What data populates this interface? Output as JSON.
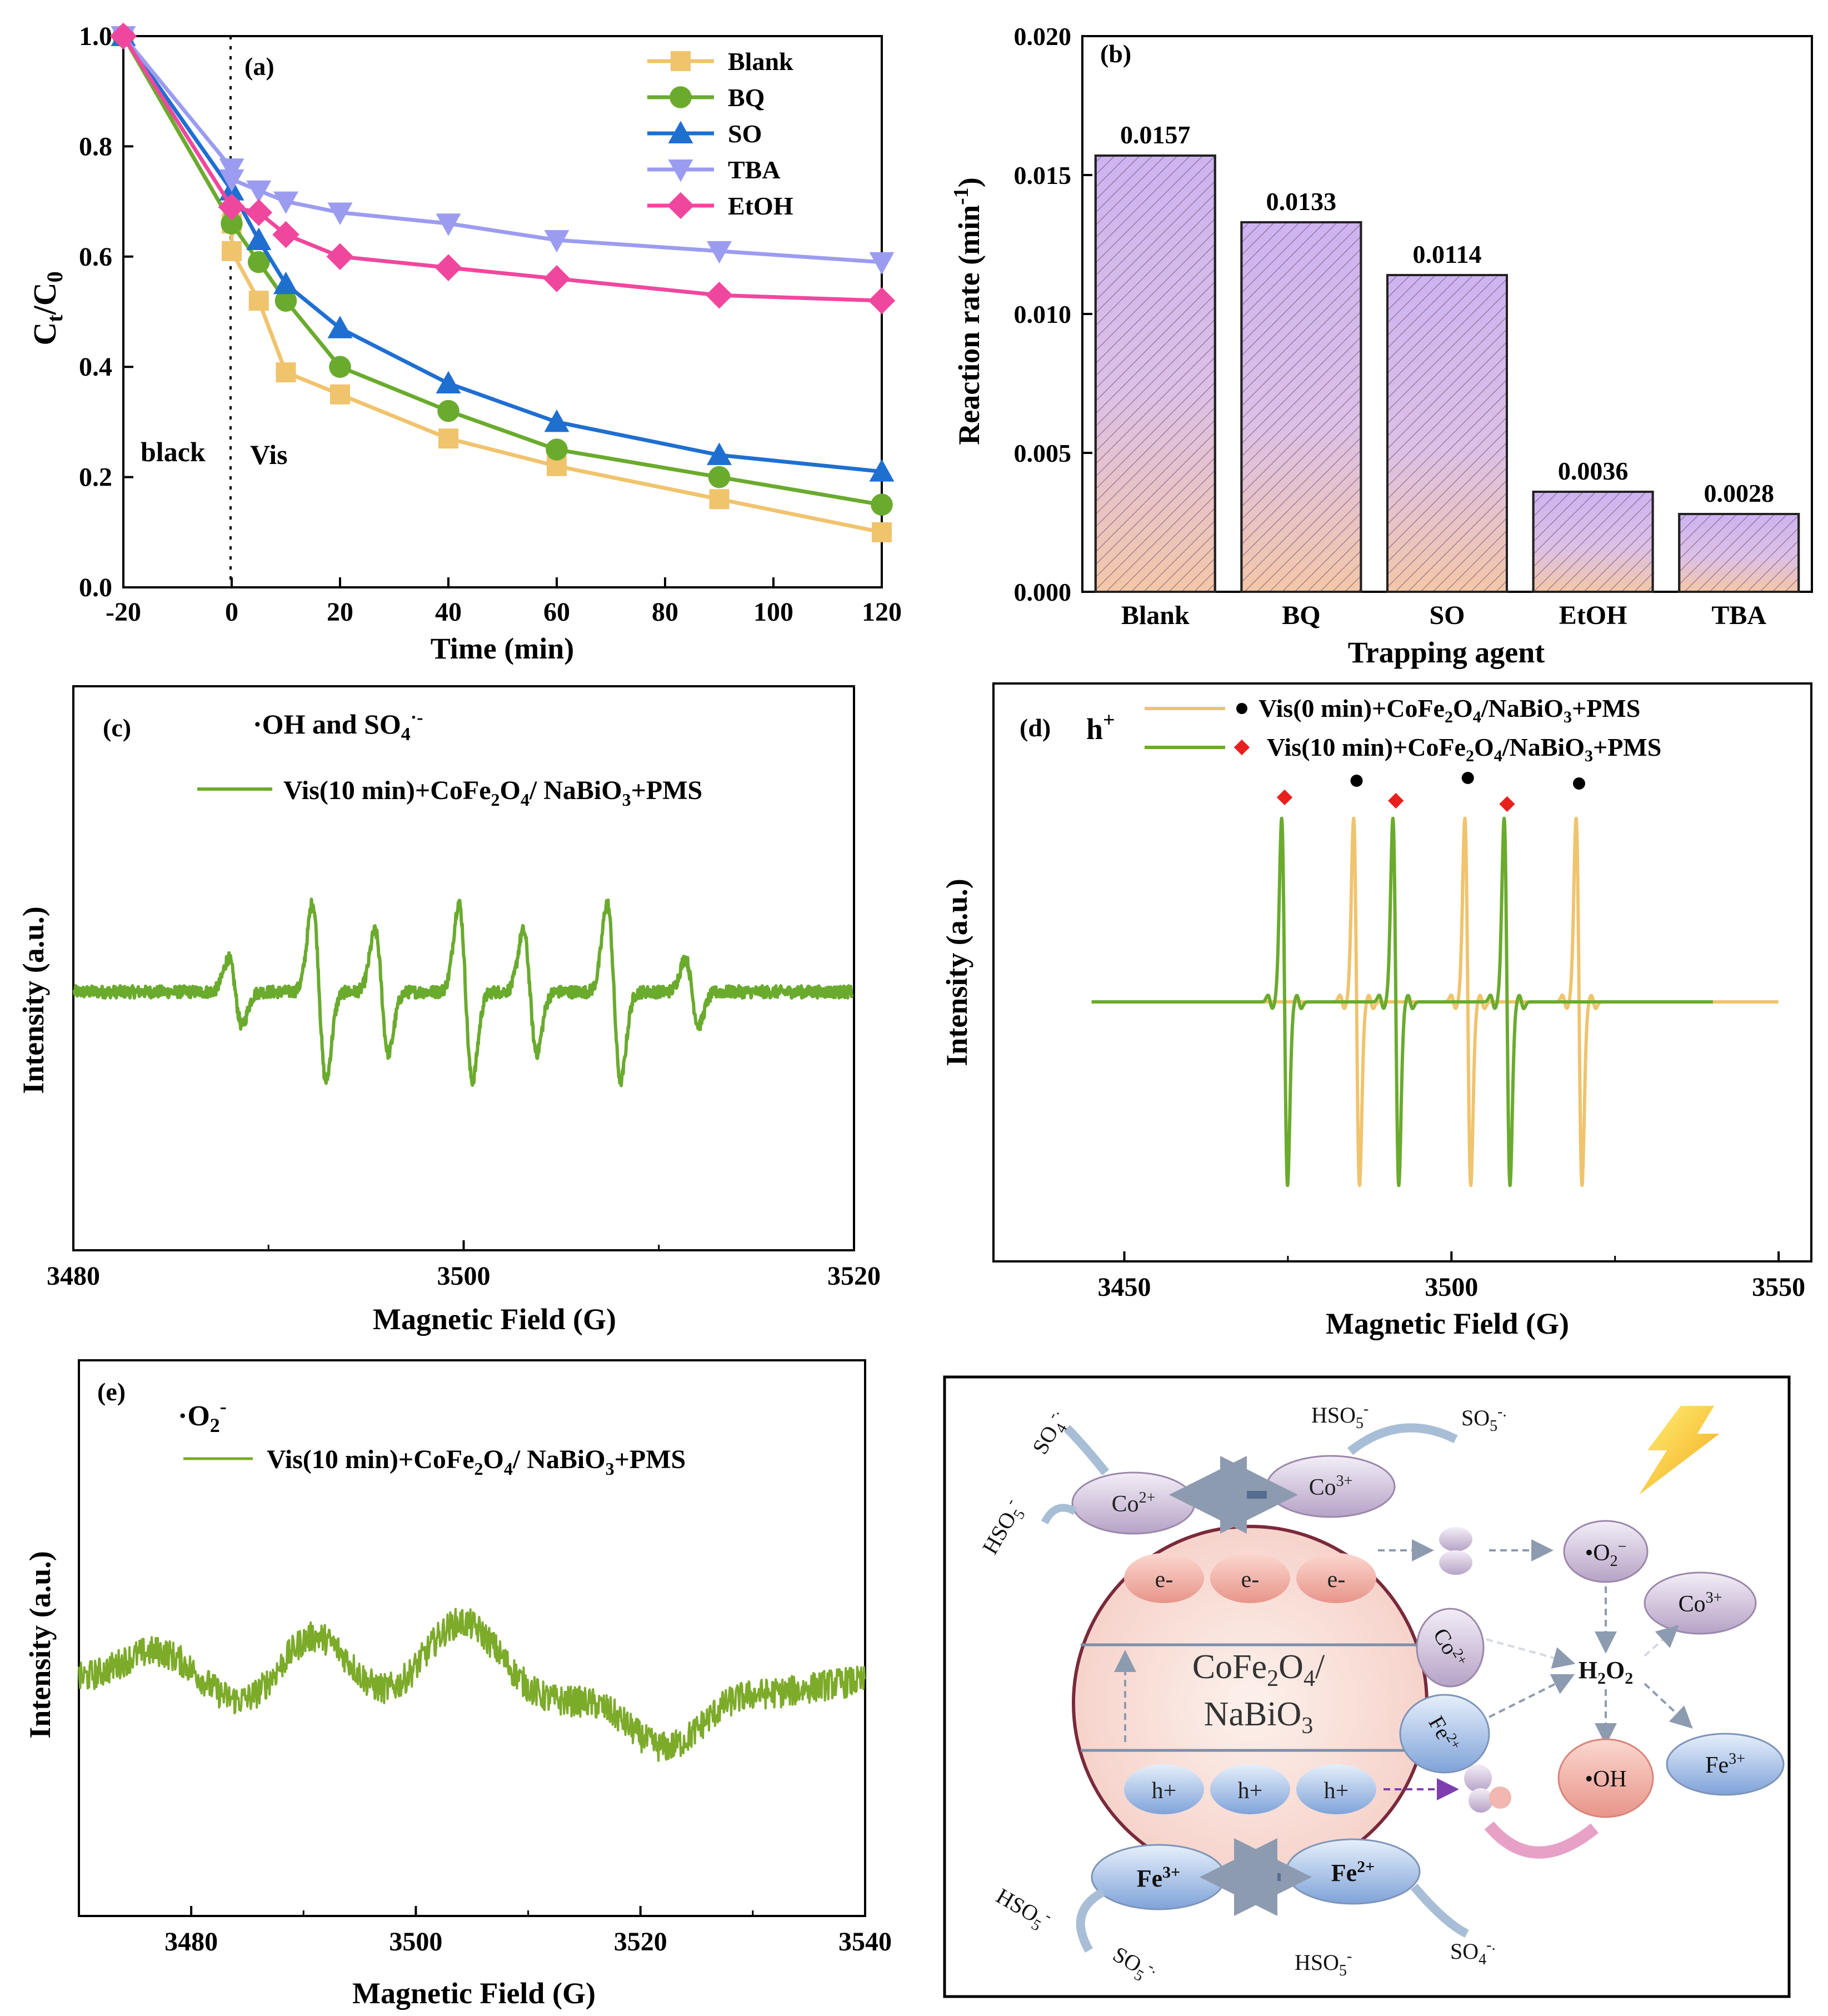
{
  "chart_data": [
    {
      "id": "a",
      "type": "line",
      "panel_label": "(a)",
      "xlabel": "Time (min)",
      "ylabel": "Ct/C0",
      "xlim": [
        -20,
        120
      ],
      "ylim": [
        0,
        1.0
      ],
      "x_ticks": [
        "-20",
        "0",
        "20",
        "40",
        "60",
        "80",
        "100",
        "120"
      ],
      "y_ticks": [
        "0.0",
        "0.2",
        "0.4",
        "0.6",
        "0.8",
        "1.0"
      ],
      "annotations": {
        "dark": "black",
        "light": "Vis"
      },
      "colors": {
        "Blank": "#f0c36d",
        "BQ": "#6aab2e",
        "SO": "#1f6fd1",
        "TBA": "#9b9cf0",
        "EtOH": "#f0479e"
      },
      "series": [
        {
          "name": "Blank",
          "marker": "square",
          "x": [
            -20,
            0,
            0,
            5,
            10,
            20,
            40,
            60,
            90,
            120
          ],
          "y": [
            1.0,
            0.66,
            0.61,
            0.52,
            0.39,
            0.35,
            0.27,
            0.22,
            0.16,
            0.1
          ]
        },
        {
          "name": "BQ",
          "marker": "circle",
          "x": [
            -20,
            0,
            5,
            10,
            20,
            40,
            60,
            90,
            120
          ],
          "y": [
            1.0,
            0.66,
            0.59,
            0.52,
            0.4,
            0.32,
            0.25,
            0.2,
            0.15
          ]
        },
        {
          "name": "SO",
          "marker": "triangle-up",
          "x": [
            -20,
            0,
            5,
            10,
            20,
            40,
            60,
            90,
            120
          ],
          "y": [
            1.0,
            0.72,
            0.63,
            0.55,
            0.47,
            0.37,
            0.3,
            0.24,
            0.21
          ]
        },
        {
          "name": "TBA",
          "marker": "triangle-down",
          "x": [
            -20,
            0,
            0,
            5,
            10,
            20,
            40,
            60,
            90,
            120
          ],
          "y": [
            1.0,
            0.76,
            0.74,
            0.72,
            0.7,
            0.68,
            0.66,
            0.63,
            0.61,
            0.59
          ]
        },
        {
          "name": "EtOH",
          "marker": "diamond",
          "x": [
            -20,
            0,
            5,
            10,
            20,
            40,
            60,
            90,
            120
          ],
          "y": [
            1.0,
            0.69,
            0.68,
            0.64,
            0.6,
            0.58,
            0.56,
            0.53,
            0.52
          ]
        }
      ]
    },
    {
      "id": "b",
      "type": "bar",
      "panel_label": "(b)",
      "xlabel": "Trapping agent",
      "ylabel": "Reaction rate (min-1)",
      "ylim": [
        0,
        0.02
      ],
      "y_ticks": [
        "0.000",
        "0.005",
        "0.010",
        "0.015",
        "0.020"
      ],
      "categories": [
        "Blank",
        "BQ",
        "SO",
        "EtOH",
        "TBA"
      ],
      "values": [
        0.0157,
        0.0133,
        0.0114,
        0.0036,
        0.0028
      ],
      "value_labels": [
        "0.0157",
        "0.0133",
        "0.0114",
        "0.0036",
        "0.0028"
      ]
    },
    {
      "id": "c",
      "type": "line",
      "panel_label": "(c)",
      "species": "·OH and SO4·-",
      "legend": "Vis(10 min)+CoFe2O4/ NaBiO3+PMS",
      "xlabel": "Magnetic Field (G)",
      "ylabel": "Intensity (a.u.)",
      "xlim": [
        3480,
        3520
      ],
      "x_ticks": [
        "3480",
        "3500",
        "3520"
      ],
      "peak_positions": [
        3488.3,
        3492.6,
        3495.8,
        3500.1,
        3503.4,
        3507.7,
        3511.7
      ]
    },
    {
      "id": "d",
      "type": "line",
      "panel_label": "(d)",
      "species": "h+",
      "legend": [
        "Vis(0 min)+CoFe2O4/NaBiO3+PMS",
        "Vis(10 min)+CoFe2O4/NaBiO3+PMS"
      ],
      "xlabel": "Magnetic Field (G)",
      "ylabel": "Intensity (a.u.)",
      "xlim": [
        3430,
        3555
      ],
      "x_ticks": [
        "3450",
        "3500",
        "3550"
      ],
      "series": [
        {
          "name": "Vis(0 min)",
          "peaks": [
            3485.5,
            3502.5,
            3519.5
          ]
        },
        {
          "name": "Vis(10 min)",
          "peaks": [
            3474.5,
            3491.5,
            3508.5
          ]
        }
      ]
    },
    {
      "id": "e",
      "type": "line",
      "panel_label": "(e)",
      "species": "·O2-",
      "legend": "Vis(10 min)+CoFe2O4/ NaBiO3+PMS",
      "xlabel": "Magnetic Field (G)",
      "ylabel": "Intensity (a.u.)",
      "xlim": [
        3470,
        3540
      ],
      "x_ticks": [
        "3480",
        "3500",
        "3520",
        "3540"
      ]
    }
  ],
  "diagram": {
    "center_line1": "CoFe2O4/",
    "center_line2": "NaBiO3",
    "electron": "e-",
    "hole": "h+",
    "top_species": [
      "Co2+",
      "Co3+",
      "HSO5-",
      "SO5-·",
      "SO4-·",
      "HSO5-"
    ],
    "right_species": [
      "•O2-",
      "Co3+",
      "H2O2",
      "Fe3+",
      "•OH",
      "Co2+",
      "Fe2+"
    ],
    "bottom_species": [
      "Fe3+",
      "Fe2+",
      "HSO5-",
      "SO5-·",
      "HSO5-",
      "SO4-·"
    ]
  }
}
